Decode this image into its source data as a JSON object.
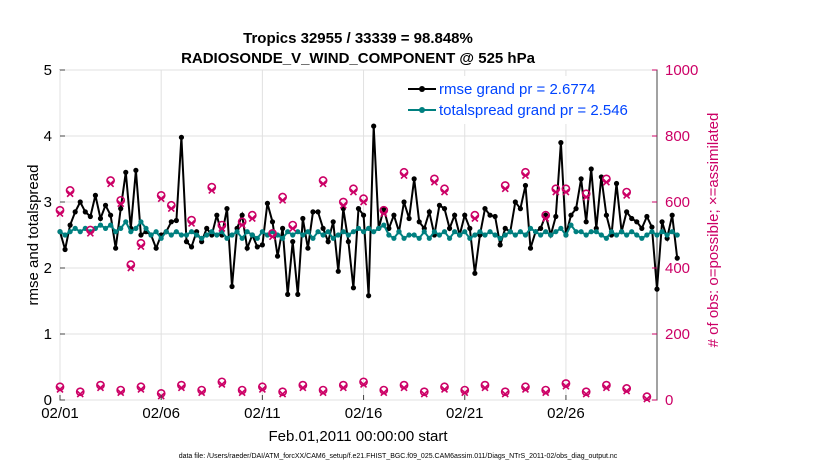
{
  "chart_data": {
    "type": "line",
    "title": "Tropics 32955 / 33339 = 98.848%",
    "subtitle": "RADIOSONDE_V_WIND_COMPONENT @ 525 hPa",
    "xlabel": "Feb.01,2011 00:00:00 start",
    "ylabel": "rmse and totalspread",
    "y2label": "# of obs: o=possible; ×=assimilated",
    "footnote": "data file: /Users/raeder/DAI/ATM_forcXX/CAM6_setup/f.e21.FHIST_BGC.f09_025.CAM6assim.011/Diags_NTrS_2011-02/obs_diag_output.nc",
    "xlim": [
      0,
      29.5
    ],
    "ylim": [
      0,
      5
    ],
    "y2lim": [
      0,
      1000
    ],
    "x_tick_labels": [
      "02/01",
      "02/06",
      "02/11",
      "02/16",
      "02/21",
      "02/26"
    ],
    "x_tick_values": [
      0,
      5,
      10,
      15,
      20,
      25
    ],
    "y_tick_labels": [
      "0",
      "1",
      "2",
      "3",
      "4",
      "5"
    ],
    "y2_tick_labels": [
      "0",
      "200",
      "400",
      "600",
      "800",
      "1000"
    ],
    "legend": [
      {
        "label": "rmse grand pr = 2.6774",
        "color": "#000000"
      },
      {
        "label": "totalspread grand pr = 2.546",
        "color": "#008080"
      }
    ],
    "x_step": 0.25,
    "series": [
      {
        "name": "rmse",
        "color": "#000000",
        "values": [
          2.55,
          2.28,
          2.65,
          2.85,
          3.0,
          2.85,
          2.78,
          3.1,
          2.75,
          2.95,
          2.8,
          2.3,
          2.9,
          3.45,
          2.6,
          3.48,
          2.5,
          2.55,
          2.5,
          2.3,
          2.5,
          2.55,
          2.7,
          2.72,
          3.98,
          2.4,
          2.32,
          2.55,
          2.4,
          2.6,
          2.5,
          2.8,
          2.5,
          2.9,
          1.72,
          2.6,
          2.8,
          2.3,
          2.5,
          2.32,
          2.35,
          2.98,
          2.7,
          2.18,
          2.6,
          1.6,
          2.4,
          1.6,
          2.75,
          2.3,
          2.85,
          2.85,
          2.6,
          2.4,
          2.7,
          1.95,
          2.9,
          2.4,
          1.7,
          2.9,
          2.8,
          1.58,
          4.15,
          2.6,
          2.9,
          2.6,
          2.8,
          2.55,
          3.0,
          2.75,
          3.35,
          2.7,
          2.6,
          2.85,
          2.5,
          2.95,
          2.9,
          2.6,
          2.8,
          2.5,
          2.8,
          2.6,
          1.92,
          2.5,
          2.9,
          2.8,
          2.78,
          2.35,
          2.6,
          2.55,
          3.0,
          2.9,
          3.25,
          2.3,
          2.55,
          2.6,
          2.8,
          2.5,
          2.78,
          3.9,
          2.5,
          2.8,
          2.9,
          3.35,
          2.7,
          3.5,
          2.6,
          3.38,
          2.8,
          2.5,
          3.28,
          2.55,
          2.85,
          2.75,
          2.7,
          2.6,
          2.78,
          2.62,
          1.68,
          2.7,
          2.45,
          2.8,
          2.15
        ]
      },
      {
        "name": "totalspread",
        "color": "#008080",
        "values": [
          2.55,
          2.5,
          2.55,
          2.6,
          2.55,
          2.6,
          2.55,
          2.6,
          2.65,
          2.6,
          2.65,
          2.55,
          2.6,
          2.7,
          2.55,
          2.6,
          2.7,
          2.6,
          2.5,
          2.55,
          2.45,
          2.55,
          2.5,
          2.55,
          2.5,
          2.5,
          2.55,
          2.5,
          2.45,
          2.5,
          2.55,
          2.5,
          2.55,
          2.45,
          2.5,
          2.55,
          2.45,
          2.55,
          2.5,
          2.45,
          2.55,
          2.5,
          2.55,
          2.5,
          2.45,
          2.55,
          2.5,
          2.55,
          2.5,
          2.55,
          2.45,
          2.55,
          2.5,
          2.55,
          2.45,
          2.5,
          2.55,
          2.5,
          2.55,
          2.6,
          2.55,
          2.6,
          2.55,
          2.6,
          2.65,
          2.5,
          2.45,
          2.55,
          2.45,
          2.5,
          2.5,
          2.45,
          2.55,
          2.45,
          2.55,
          2.5,
          2.55,
          2.45,
          2.55,
          2.5,
          2.55,
          2.45,
          2.5,
          2.55,
          2.5,
          2.55,
          2.5,
          2.45,
          2.5,
          2.55,
          2.5,
          2.55,
          2.5,
          2.6,
          2.55,
          2.5,
          2.55,
          2.5,
          2.55,
          2.6,
          2.5,
          2.65,
          2.55,
          2.55,
          2.5,
          2.55,
          2.55,
          2.5,
          2.45,
          2.55,
          2.5,
          2.55,
          2.5,
          2.55,
          2.5,
          2.45,
          2.5,
          2.55,
          2.5,
          2.55,
          2.5,
          2.55,
          2.5
        ]
      }
    ],
    "obs_possible": {
      "x": [
        0,
        0.5,
        1.5,
        2.5,
        3,
        3.5,
        4,
        5,
        5.5,
        6.5,
        7.5,
        8,
        9,
        9.5,
        10.5,
        11,
        11.5,
        13,
        14,
        14.5,
        15,
        16,
        17,
        18.5,
        19,
        20.5,
        22,
        23,
        24,
        24.5,
        25,
        26,
        27,
        28
      ],
      "values": [
        575,
        635,
        515,
        665,
        605,
        410,
        475,
        620,
        590,
        545,
        645,
        530,
        540,
        560,
        505,
        615,
        530,
        665,
        600,
        640,
        610,
        575,
        690,
        670,
        640,
        560,
        650,
        690,
        560,
        640,
        640,
        625,
        670,
        630
      ]
    },
    "obs_assimilated": {
      "x": [
        0,
        0.5,
        1.5,
        2.5,
        3,
        3.5,
        4,
        5,
        5.5,
        6.5,
        7.5,
        8,
        9,
        9.5,
        10.5,
        11,
        11.5,
        13,
        14,
        14.5,
        15,
        16,
        17,
        18.5,
        19,
        20.5,
        22,
        23,
        24,
        24.5,
        25,
        26,
        27,
        28
      ],
      "values": [
        565,
        625,
        505,
        655,
        595,
        400,
        465,
        610,
        580,
        535,
        635,
        520,
        530,
        550,
        495,
        605,
        520,
        655,
        590,
        630,
        600,
        565,
        680,
        660,
        630,
        550,
        640,
        680,
        550,
        630,
        630,
        615,
        660,
        620
      ]
    },
    "obs_low_possible": {
      "x": [
        0,
        1,
        2,
        3,
        4,
        5,
        6,
        7,
        8,
        9,
        10,
        11,
        12,
        13,
        14,
        15,
        16,
        17,
        18,
        19,
        20,
        21,
        22,
        23,
        24,
        25,
        26,
        27,
        28,
        29
      ],
      "values": [
        40,
        25,
        45,
        30,
        40,
        20,
        45,
        30,
        55,
        30,
        40,
        25,
        45,
        30,
        45,
        55,
        30,
        45,
        25,
        40,
        30,
        45,
        25,
        40,
        30,
        50,
        25,
        45,
        35,
        10
      ]
    },
    "obs_low_assimilated": {
      "x": [
        0,
        1,
        2,
        3,
        4,
        5,
        6,
        7,
        8,
        9,
        10,
        11,
        12,
        13,
        14,
        15,
        16,
        17,
        18,
        19,
        20,
        21,
        22,
        23,
        24,
        25,
        26,
        27,
        28,
        29
      ],
      "values": [
        32,
        18,
        37,
        22,
        32,
        12,
        37,
        22,
        47,
        22,
        32,
        18,
        37,
        22,
        37,
        47,
        22,
        37,
        18,
        32,
        22,
        37,
        18,
        32,
        22,
        42,
        18,
        37,
        27,
        3
      ]
    }
  }
}
